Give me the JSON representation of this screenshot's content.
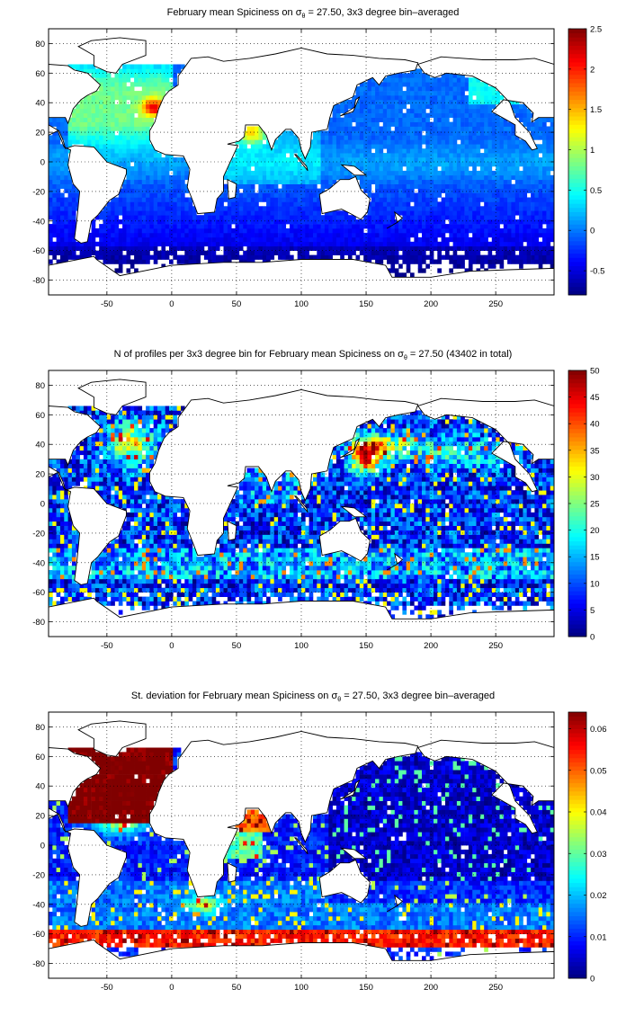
{
  "chart_data": [
    {
      "type": "heatmap",
      "title_parts": [
        "February mean Spiciness on ",
        "σ",
        "θ",
        " = 27.50, 3x3 degree bin–averaged"
      ],
      "x_ticks": [
        "-50",
        "0",
        "50",
        "100",
        "150",
        "200",
        "250"
      ],
      "y_ticks": [
        "80",
        "60",
        "40",
        "20",
        "0",
        "-20",
        "-40",
        "-60",
        "-80"
      ],
      "xlim": [
        -95,
        295
      ],
      "ylim": [
        -90,
        90
      ],
      "grid": true,
      "colorbar": {
        "min": -0.8,
        "max": 2.5,
        "ticks": [
          "2.5",
          "2",
          "1.5",
          "1",
          "0.5",
          "0",
          "-0.5"
        ]
      },
      "colormap": "jet",
      "typical_values": {
        "north_atlantic": 1.0,
        "mediterranean_outflow": 2.3,
        "arabian_sea": 1.5,
        "tropics": 0.25,
        "southern_ocean": -0.5,
        "pacific": -0.1
      }
    },
    {
      "type": "heatmap",
      "title_parts": [
        "N of profiles per 3x3 degree bin for February mean Spiciness on ",
        "σ",
        "θ",
        " = 27.50 (43402 in total)"
      ],
      "x_ticks": [
        "-50",
        "0",
        "50",
        "100",
        "150",
        "200",
        "250"
      ],
      "y_ticks": [
        "80",
        "60",
        "40",
        "20",
        "0",
        "-20",
        "-40",
        "-60",
        "-80"
      ],
      "xlim": [
        -95,
        295
      ],
      "ylim": [
        -90,
        90
      ],
      "grid": true,
      "colorbar": {
        "min": 0,
        "max": 50,
        "ticks": [
          "50",
          "45",
          "40",
          "35",
          "30",
          "25",
          "20",
          "15",
          "10",
          "5",
          "0"
        ]
      },
      "colormap": "jet",
      "typical_values": {
        "kuroshio": 45,
        "north_atlantic": 30,
        "southern_ocean": 15,
        "background": 8
      }
    },
    {
      "type": "heatmap",
      "title_parts": [
        "St. deviation for February mean Spiciness on ",
        "σ",
        "θ",
        " = 27.50, 3x3 degree bin–averaged"
      ],
      "x_ticks": [
        "-50",
        "0",
        "50",
        "100",
        "150",
        "200",
        "250"
      ],
      "y_ticks": [
        "80",
        "60",
        "40",
        "20",
        "0",
        "-20",
        "-40",
        "-60",
        "-80"
      ],
      "xlim": [
        -95,
        295
      ],
      "ylim": [
        -90,
        90
      ],
      "grid": true,
      "colorbar": {
        "min": 0,
        "max": 0.064,
        "ticks": [
          "0.06",
          "0.05",
          "0.04",
          "0.03",
          "0.02",
          "0.01",
          "0"
        ]
      },
      "colormap": "jet",
      "typical_values": {
        "north_atlantic": 0.064,
        "red_sea_arabian": 0.05,
        "southern_front": 0.06,
        "pacific": 0.006,
        "background": 0.012
      }
    }
  ]
}
